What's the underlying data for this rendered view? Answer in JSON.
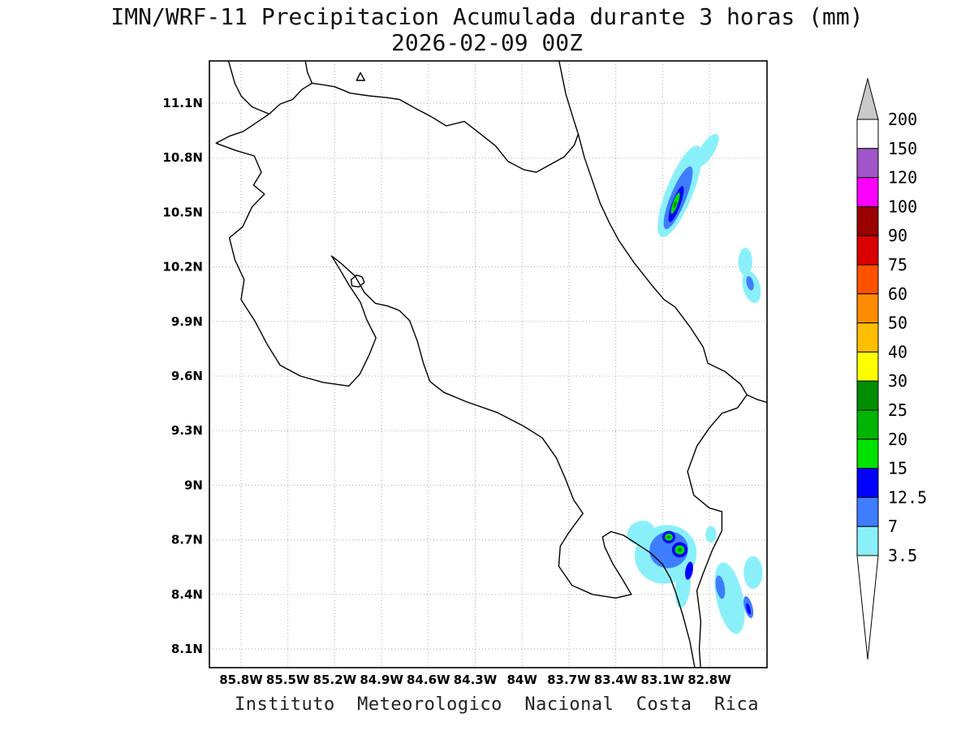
{
  "title": {
    "line1": "IMN/WRF-11 Precipitacion Acumulada durante 3 horas (mm)",
    "line2": "2026-02-09 00Z"
  },
  "footer": "Instituto  Meteorologico  Nacional  Costa  Rica",
  "map": {
    "x_tick_labels": [
      "85.8W",
      "85.5W",
      "85.2W",
      "84.9W",
      "84.6W",
      "84.3W",
      "84W",
      "83.7W",
      "83.4W",
      "83.1W",
      "82.8W"
    ],
    "x_tick_values": [
      85.8,
      85.5,
      85.2,
      84.9,
      84.6,
      84.3,
      84.0,
      83.7,
      83.4,
      83.1,
      82.8
    ],
    "y_tick_labels": [
      "11.1N",
      "10.8N",
      "10.5N",
      "10.2N",
      "9.9N",
      "9.6N",
      "9.3N",
      "9N",
      "8.7N",
      "8.4N",
      "8.1N"
    ],
    "y_tick_values": [
      11.1,
      10.8,
      10.5,
      10.2,
      9.9,
      9.6,
      9.3,
      9.0,
      8.7,
      8.4,
      8.1
    ],
    "grid_style": "dotted",
    "region": "Costa Rica"
  },
  "colorbar": {
    "units": "mm",
    "levels": [
      "200",
      "150",
      "120",
      "100",
      "90",
      "75",
      "60",
      "50",
      "40",
      "30",
      "25",
      "20",
      "15",
      "12.5",
      "7",
      "3.5"
    ],
    "segment_colors": [
      "#ffffff",
      "#a055c8",
      "#ff00ff",
      "#9b0000",
      "#db0000",
      "#ff5200",
      "#ff8c00",
      "#ffbe00",
      "#ffff00",
      "#008f00",
      "#00b400",
      "#00e100",
      "#0000ff",
      "#3f7dff",
      "#89f0fa"
    ],
    "arrow_top_color": "#c9c9c9",
    "arrow_bottom_color": "#ffffff"
  },
  "precipitation_cells": [
    {
      "lon": 82.99,
      "lat": 10.615,
      "rx": 0.085,
      "ry": 0.27,
      "rot": 22,
      "level": "3.5"
    },
    {
      "lon": 82.815,
      "lat": 10.84,
      "rx": 0.045,
      "ry": 0.105,
      "rot": 32,
      "level": "3.5"
    },
    {
      "lon": 82.57,
      "lat": 10.23,
      "rx": 0.045,
      "ry": 0.075,
      "rot": 0,
      "level": "3.5"
    },
    {
      "lon": 82.53,
      "lat": 10.09,
      "rx": 0.055,
      "ry": 0.09,
      "rot": -15,
      "level": "3.5"
    },
    {
      "lon": 83.08,
      "lat": 8.62,
      "rx": 0.2,
      "ry": 0.16,
      "rot": -20,
      "level": "3.5"
    },
    {
      "lon": 83.24,
      "lat": 8.74,
      "rx": 0.09,
      "ry": 0.062,
      "rot": -25,
      "level": "3.5"
    },
    {
      "lon": 82.97,
      "lat": 8.44,
      "rx": 0.048,
      "ry": 0.115,
      "rot": 6,
      "level": "3.5"
    },
    {
      "lon": 82.79,
      "lat": 8.73,
      "rx": 0.035,
      "ry": 0.045,
      "rot": 0,
      "level": "3.5"
    },
    {
      "lon": 82.67,
      "lat": 8.38,
      "rx": 0.085,
      "ry": 0.2,
      "rot": -12,
      "level": "3.5"
    },
    {
      "lon": 82.52,
      "lat": 8.52,
      "rx": 0.06,
      "ry": 0.09,
      "rot": 0,
      "level": "3.5"
    },
    {
      "lon": 83.0,
      "lat": 10.58,
      "rx": 0.05,
      "ry": 0.185,
      "rot": 22,
      "level": "7"
    },
    {
      "lon": 82.54,
      "lat": 10.11,
      "rx": 0.022,
      "ry": 0.04,
      "rot": -15,
      "level": "7"
    },
    {
      "lon": 83.06,
      "lat": 8.645,
      "rx": 0.125,
      "ry": 0.1,
      "rot": -20,
      "level": "7"
    },
    {
      "lon": 82.73,
      "lat": 8.44,
      "rx": 0.028,
      "ry": 0.065,
      "rot": -10,
      "level": "7"
    },
    {
      "lon": 82.55,
      "lat": 8.33,
      "rx": 0.026,
      "ry": 0.062,
      "rot": -15,
      "level": "7"
    },
    {
      "lon": 83.013,
      "lat": 10.545,
      "rx": 0.027,
      "ry": 0.105,
      "rot": 20,
      "level": "12.5"
    },
    {
      "lon": 83.06,
      "lat": 8.715,
      "rx": 0.042,
      "ry": 0.034,
      "rot": 0,
      "level": "12.5"
    },
    {
      "lon": 82.99,
      "lat": 8.645,
      "rx": 0.05,
      "ry": 0.042,
      "rot": 0,
      "level": "12.5"
    },
    {
      "lon": 82.93,
      "lat": 8.53,
      "rx": 0.024,
      "ry": 0.05,
      "rot": 10,
      "level": "12.5"
    },
    {
      "lon": 82.55,
      "lat": 8.32,
      "rx": 0.012,
      "ry": 0.032,
      "rot": -15,
      "level": "12.5"
    },
    {
      "lon": 83.018,
      "lat": 10.55,
      "rx": 0.016,
      "ry": 0.062,
      "rot": 20,
      "level": "15"
    },
    {
      "lon": 83.06,
      "lat": 8.715,
      "rx": 0.026,
      "ry": 0.02,
      "rot": 0,
      "level": "15"
    },
    {
      "lon": 82.99,
      "lat": 8.645,
      "rx": 0.031,
      "ry": 0.025,
      "rot": 0,
      "level": "15"
    },
    {
      "lon": 83.02,
      "lat": 10.545,
      "rx": 0.008,
      "ry": 0.02,
      "rot": 20,
      "level": "25"
    },
    {
      "lon": 83.06,
      "lat": 8.715,
      "rx": 0.01,
      "ry": 0.008,
      "rot": 0,
      "level": "25"
    },
    {
      "lon": 82.99,
      "lat": 8.645,
      "rx": 0.013,
      "ry": 0.01,
      "rot": 0,
      "level": "25"
    }
  ]
}
